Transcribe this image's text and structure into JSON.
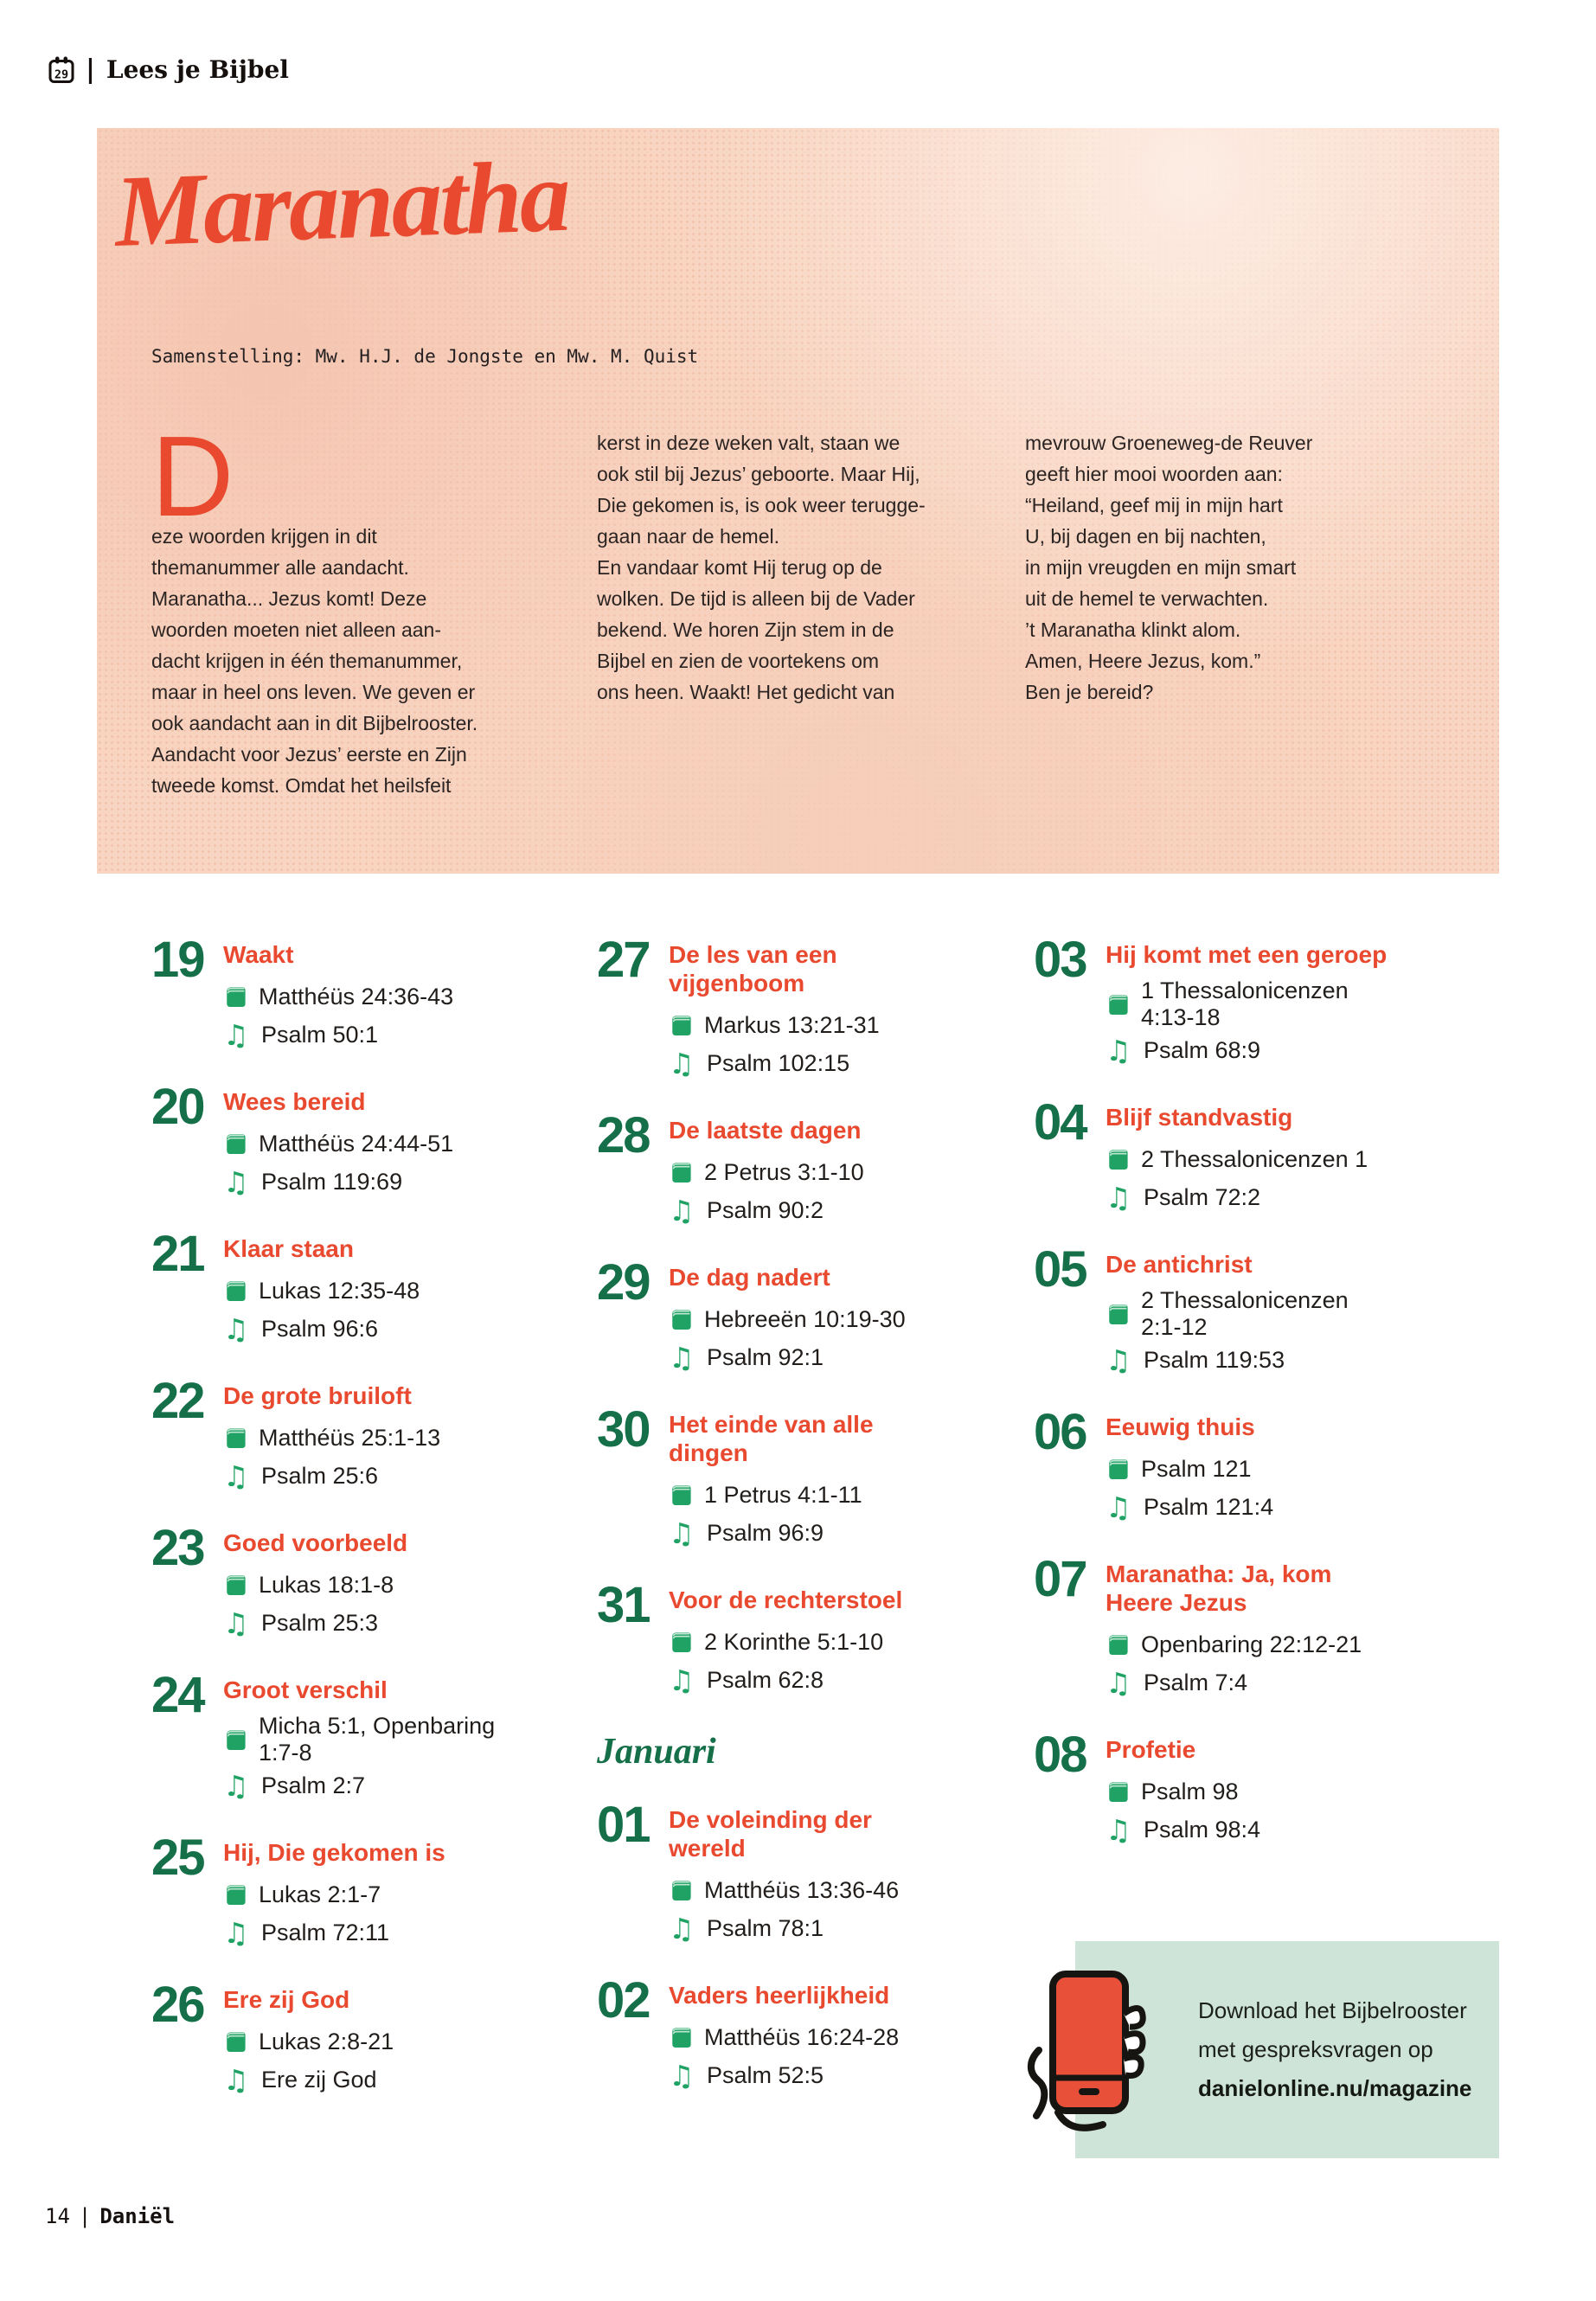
{
  "header": {
    "calendar_icon_number": "29",
    "separator": "|",
    "brand": "Lees je Bijbel"
  },
  "hero": {
    "title": "Maranatha",
    "byline": "Samenstelling: Mw. H.J. de Jongste en Mw. M. Quist",
    "dropcap": "D",
    "intro_columns": [
      {
        "lines": [
          "eze woorden krijgen in dit",
          "themanummer alle aandacht.",
          "Maranatha... Jezus komt! Deze",
          "woorden moeten niet alleen aan-",
          "dacht krijgen in één themanummer,",
          "maar in heel ons leven. We geven er",
          "ook aandacht aan in dit Bijbelrooster.",
          "Aandacht voor Jezus’ eerste en Zijn",
          "tweede komst. Omdat het heilsfeit"
        ]
      },
      {
        "lines": [
          "kerst in deze weken valt, staan we",
          "ook stil bij Jezus’ geboorte. Maar Hij,",
          "Die gekomen is, is ook weer terugge-",
          "gaan naar de hemel.",
          "En vandaar komt Hij terug op de",
          "wolken. De tijd is alleen bij de Vader",
          "bekend. We horen Zijn stem in de",
          "Bijbel en zien de voortekens om",
          "ons heen. Waakt! Het gedicht van"
        ]
      },
      {
        "lines": [
          "mevrouw Groeneweg-de Reuver",
          "geeft hier mooi woorden aan:",
          "“Heiland, geef mij in mijn hart",
          "U, bij dagen en bij nachten,",
          "in mijn vreugden en mijn smart",
          "uit de hemel te verwachten.",
          "’t Maranatha klinkt alom.",
          "Amen, Heere Jezus, kom.”",
          "Ben je bereid?"
        ]
      }
    ]
  },
  "schedule": {
    "columns": [
      {
        "items": [
          {
            "type": "entry",
            "day": "19",
            "title": "Waakt",
            "reading": "Matthéüs 24:36-43",
            "song": "Psalm 50:1"
          },
          {
            "type": "entry",
            "day": "20",
            "title": "Wees bereid",
            "reading": "Matthéüs 24:44-51",
            "song": "Psalm 119:69"
          },
          {
            "type": "entry",
            "day": "21",
            "title": "Klaar staan",
            "reading": "Lukas 12:35-48",
            "song": "Psalm 96:6"
          },
          {
            "type": "entry",
            "day": "22",
            "title": "De grote bruiloft",
            "reading": "Matthéüs 25:1-13",
            "song": "Psalm 25:6"
          },
          {
            "type": "entry",
            "day": "23",
            "title": "Goed voorbeeld",
            "reading": "Lukas 18:1-8",
            "song": "Psalm 25:3"
          },
          {
            "type": "entry",
            "day": "24",
            "title": "Groot verschil",
            "reading": "Micha 5:1, Openbaring 1:7-8",
            "song": "Psalm 2:7"
          },
          {
            "type": "entry",
            "day": "25",
            "title": "Hij, Die gekomen is",
            "reading": "Lukas 2:1-7",
            "song": "Psalm 72:11"
          },
          {
            "type": "entry",
            "day": "26",
            "title": "Ere zij God",
            "reading": "Lukas 2:8-21",
            "song": "Ere zij God"
          }
        ]
      },
      {
        "items": [
          {
            "type": "entry",
            "day": "27",
            "title": "De les van een vijgenboom",
            "reading": "Markus 13:21-31",
            "song": "Psalm 102:15"
          },
          {
            "type": "entry",
            "day": "28",
            "title": "De laatste dagen",
            "reading": "2 Petrus 3:1-10",
            "song": "Psalm 90:2"
          },
          {
            "type": "entry",
            "day": "29",
            "title": "De dag nadert",
            "reading": "Hebreeën 10:19-30",
            "song": "Psalm 92:1"
          },
          {
            "type": "entry",
            "day": "30",
            "title": "Het einde van alle dingen",
            "reading": "1 Petrus 4:1-11",
            "song": "Psalm 96:9"
          },
          {
            "type": "entry",
            "day": "31",
            "title": "Voor de rechterstoel",
            "reading": "2 Korinthe 5:1-10",
            "song": "Psalm 62:8"
          },
          {
            "type": "month",
            "label": "Januari"
          },
          {
            "type": "entry",
            "day": "01",
            "title": "De voleinding der wereld",
            "reading": "Matthéüs 13:36-46",
            "song": "Psalm 78:1"
          },
          {
            "type": "entry",
            "day": "02",
            "title": "Vaders heerlijkheid",
            "reading": "Matthéüs 16:24-28",
            "song": "Psalm 52:5"
          }
        ]
      },
      {
        "items": [
          {
            "type": "entry",
            "day": "03",
            "title": "Hij komt met een geroep",
            "reading": "1 Thessalonicenzen 4:13-18",
            "song": "Psalm 68:9"
          },
          {
            "type": "entry",
            "day": "04",
            "title": "Blijf standvastig",
            "reading": "2 Thessalonicenzen 1",
            "song": "Psalm 72:2"
          },
          {
            "type": "entry",
            "day": "05",
            "title": "De antichrist",
            "reading": "2 Thessalonicenzen 2:1-12",
            "song": "Psalm 119:53"
          },
          {
            "type": "entry",
            "day": "06",
            "title": "Eeuwig thuis",
            "reading": "Psalm 121",
            "song": "Psalm 121:4"
          },
          {
            "type": "entry",
            "day": "07",
            "title": "Maranatha: Ja, kom Heere Jezus",
            "reading": "Openbaring 22:12-21",
            "song": "Psalm 7:4"
          },
          {
            "type": "entry",
            "day": "08",
            "title": "Profetie",
            "reading": "Psalm 98",
            "song": "Psalm 98:4"
          }
        ]
      }
    ]
  },
  "download_box": {
    "lines": [
      "Download het Bijbelrooster",
      "met gespreksvragen op"
    ],
    "link": "danielonline.nu/magazine"
  },
  "footer": {
    "page_number": "14",
    "separator": "|",
    "magazine": "Daniël"
  },
  "colors": {
    "accent_red": "#e8492f",
    "number_green": "#156f49",
    "icon_green": "#1fa264",
    "hero_peach": "#f8d5c2",
    "box_green": "#cfe4d8"
  }
}
